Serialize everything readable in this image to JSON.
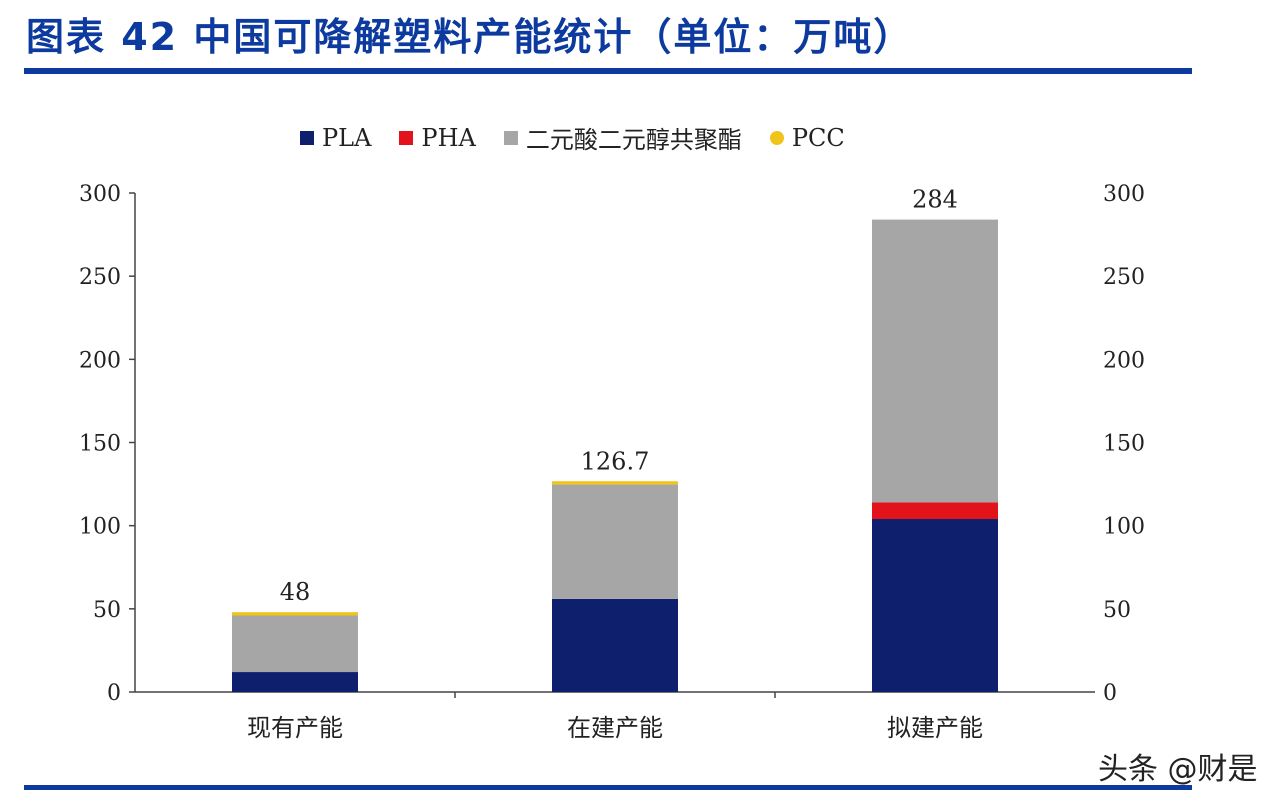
{
  "header": {
    "title": "图表 42 中国可降解塑料产能统计（单位：万吨）"
  },
  "watermark": "头条 @财是",
  "chart_data": {
    "type": "bar",
    "stacked": true,
    "categories": [
      "现有产能",
      "在建产能",
      "拟建产能"
    ],
    "series": [
      {
        "name": "PLA",
        "color": "#0e1f6e",
        "values": [
          12,
          56,
          104
        ]
      },
      {
        "name": "PHA",
        "color": "#e2131b",
        "values": [
          0,
          0,
          10
        ]
      },
      {
        "name": "二元酸二元醇共聚酯",
        "color": "#a6a6a6",
        "values": [
          34,
          68.7,
          170
        ]
      },
      {
        "name": "PCC",
        "color": "#f0c419",
        "values": [
          2,
          2,
          0
        ]
      }
    ],
    "totals": [
      "48",
      "126.7",
      "284"
    ],
    "ylim": [
      0,
      300
    ],
    "yticks": [
      "0",
      "50",
      "100",
      "150",
      "200",
      "250",
      "300"
    ],
    "y2ticks": [
      "0",
      "50",
      "100",
      "150",
      "200",
      "250",
      "300"
    ],
    "legend_position": "top",
    "grid": false
  }
}
